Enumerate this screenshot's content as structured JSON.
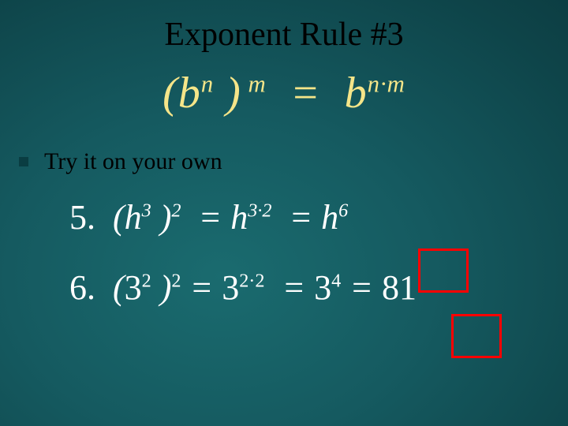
{
  "title": "Exponent Rule #3",
  "rule": {
    "lhs_base": "b",
    "lhs_inner_exp": "n",
    "lhs_outer_exp": "m",
    "rhs_base": "b",
    "rhs_exp": "n·m"
  },
  "bullet_text": "Try it on your own",
  "examples": {
    "line5": {
      "number": "5.",
      "base1": "h",
      "exp1_inner": "3",
      "exp1_outer": "2",
      "mid_base": "h",
      "mid_exp": "3·2",
      "final_base": "h",
      "final_exp": "6"
    },
    "line6": {
      "number": "6.",
      "base1": "3",
      "exp1_inner": "2",
      "exp1_outer": "2",
      "mid_base": "3",
      "mid_exp": "2·2",
      "mid2_base": "3",
      "mid2_exp": "4",
      "final": "81"
    }
  },
  "colors": {
    "title_color": "#000000",
    "formula_color": "#f5e589",
    "example_color": "#ffffff",
    "highlight_border": "#ff0000",
    "bg_inner": "#1a6b6f",
    "bg_outer": "#072b30"
  }
}
